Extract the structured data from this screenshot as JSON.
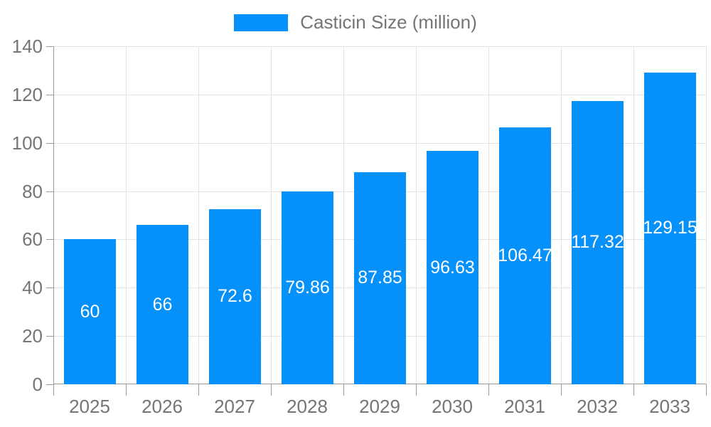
{
  "legend": {
    "label": "Casticin Size (million)"
  },
  "colors": {
    "bar": "#0590fa",
    "bar_label": "#ffffff",
    "axis_line": "#9a9a9a",
    "gridline": "#e3e3e3",
    "axis_text": "#757575",
    "background": "#ffffff"
  },
  "chart_data": {
    "type": "bar",
    "title": "Casticin Size (million)",
    "categories": [
      "2025",
      "2026",
      "2027",
      "2028",
      "2029",
      "2030",
      "2031",
      "2032",
      "2033"
    ],
    "values": [
      60,
      66,
      72.6,
      79.86,
      87.85,
      96.63,
      106.47,
      117.32,
      129.15
    ],
    "data_labels": [
      "60",
      "66",
      "72.6",
      "79.86",
      "87.85",
      "96.63",
      "106.47",
      "117.32",
      "129.15"
    ],
    "series": [
      {
        "name": "Casticin Size (million)",
        "values": [
          60,
          66,
          72.6,
          79.86,
          87.85,
          96.63,
          106.47,
          117.32,
          129.15
        ]
      }
    ],
    "xlabel": "",
    "ylabel": "",
    "ylim": [
      0,
      140
    ],
    "ytick_step": 20,
    "yticks": [
      0,
      20,
      40,
      60,
      80,
      100,
      120,
      140
    ],
    "grid": true,
    "legend_position": "top",
    "data_label_position": "inside-center"
  }
}
